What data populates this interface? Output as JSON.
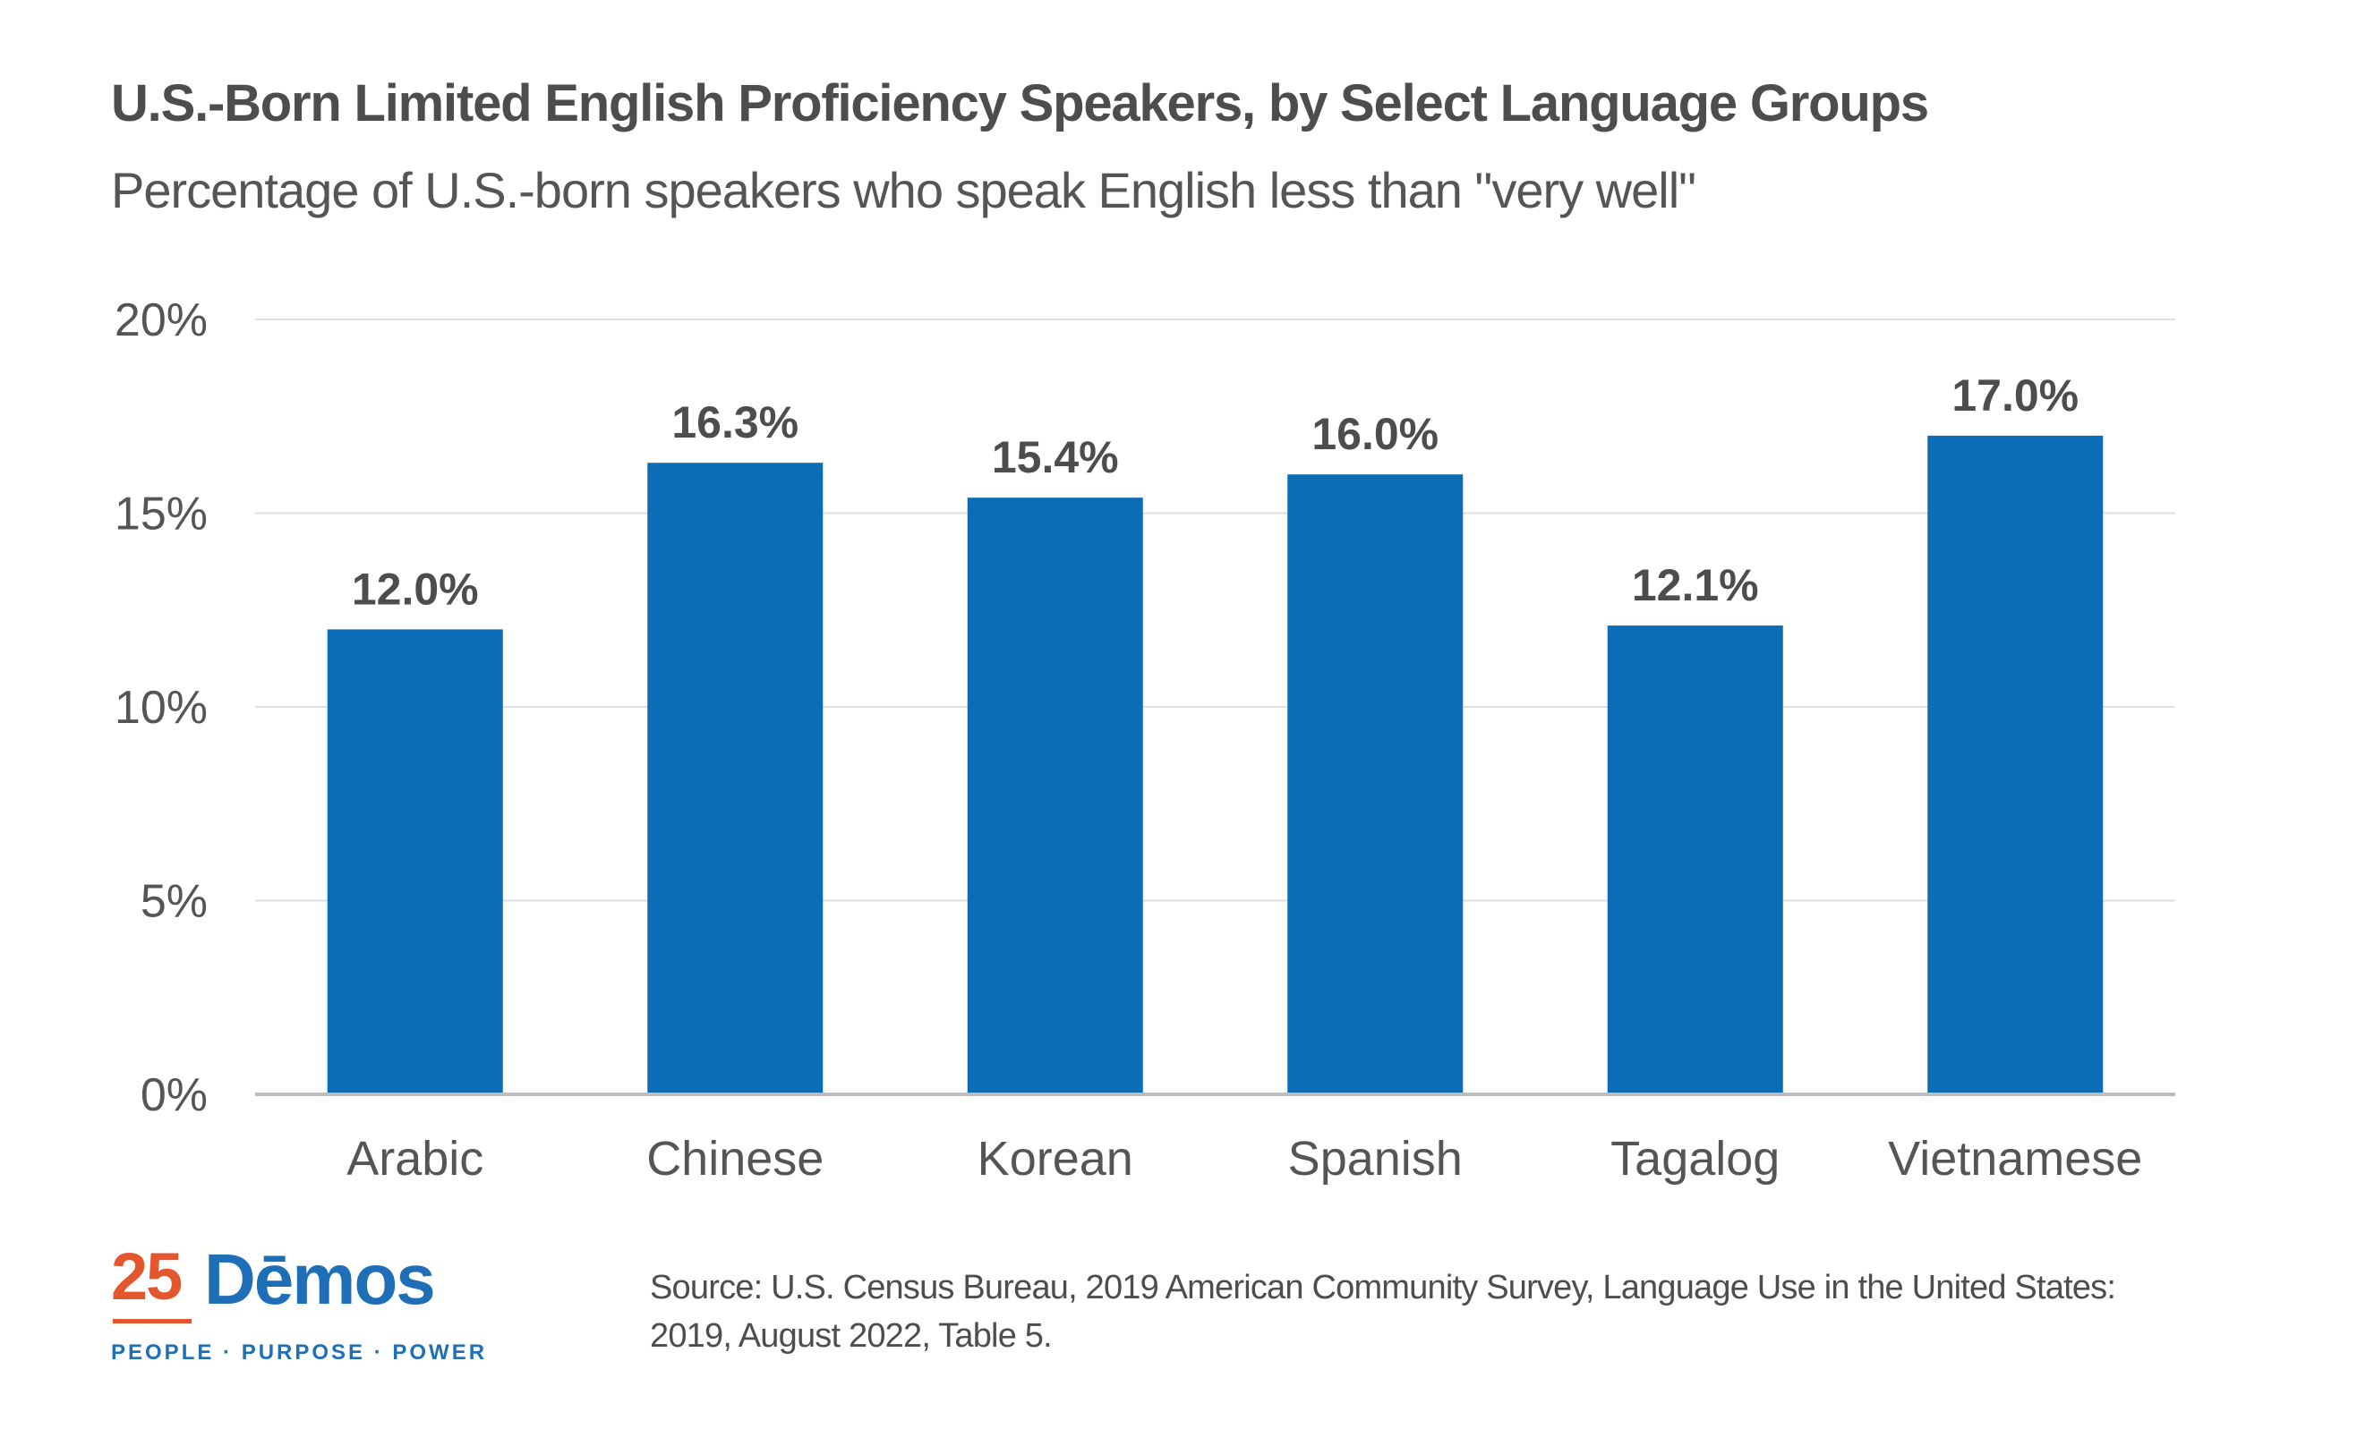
{
  "header": {
    "title": "U.S.-Born Limited English Proficiency Speakers, by Select Language Groups",
    "subtitle": "Percentage of U.S.-born speakers who speak English less than \"very well\""
  },
  "chart_data": {
    "type": "bar",
    "categories": [
      "Arabic",
      "Chinese",
      "Korean",
      "Spanish",
      "Tagalog",
      "Vietnamese"
    ],
    "values": [
      12.0,
      16.3,
      15.4,
      16.0,
      12.1,
      17.0
    ],
    "data_labels": [
      "12.0%",
      "16.3%",
      "15.4%",
      "16.0%",
      "12.1%",
      "17.0%"
    ],
    "yticks": [
      0,
      5,
      10,
      15,
      20
    ],
    "ytick_labels": [
      "0%",
      "5%",
      "10%",
      "15%",
      "20%"
    ],
    "ylim": [
      0,
      20
    ],
    "grid": true,
    "legend": "none",
    "colors": {
      "bar": "#0b6db6",
      "grid": "#dedede",
      "axis": "#bdbdbd",
      "text": "#4d4d4d",
      "label": "#555555"
    }
  },
  "footer": {
    "logo": {
      "number": "25",
      "word": "Dēmos",
      "tagline": "PEOPLE · PURPOSE · POWER"
    },
    "source": "Source: U.S. Census Bureau, 2019 American Community Survey,  Language Use in the United States: 2019, August 2022, Table 5."
  }
}
